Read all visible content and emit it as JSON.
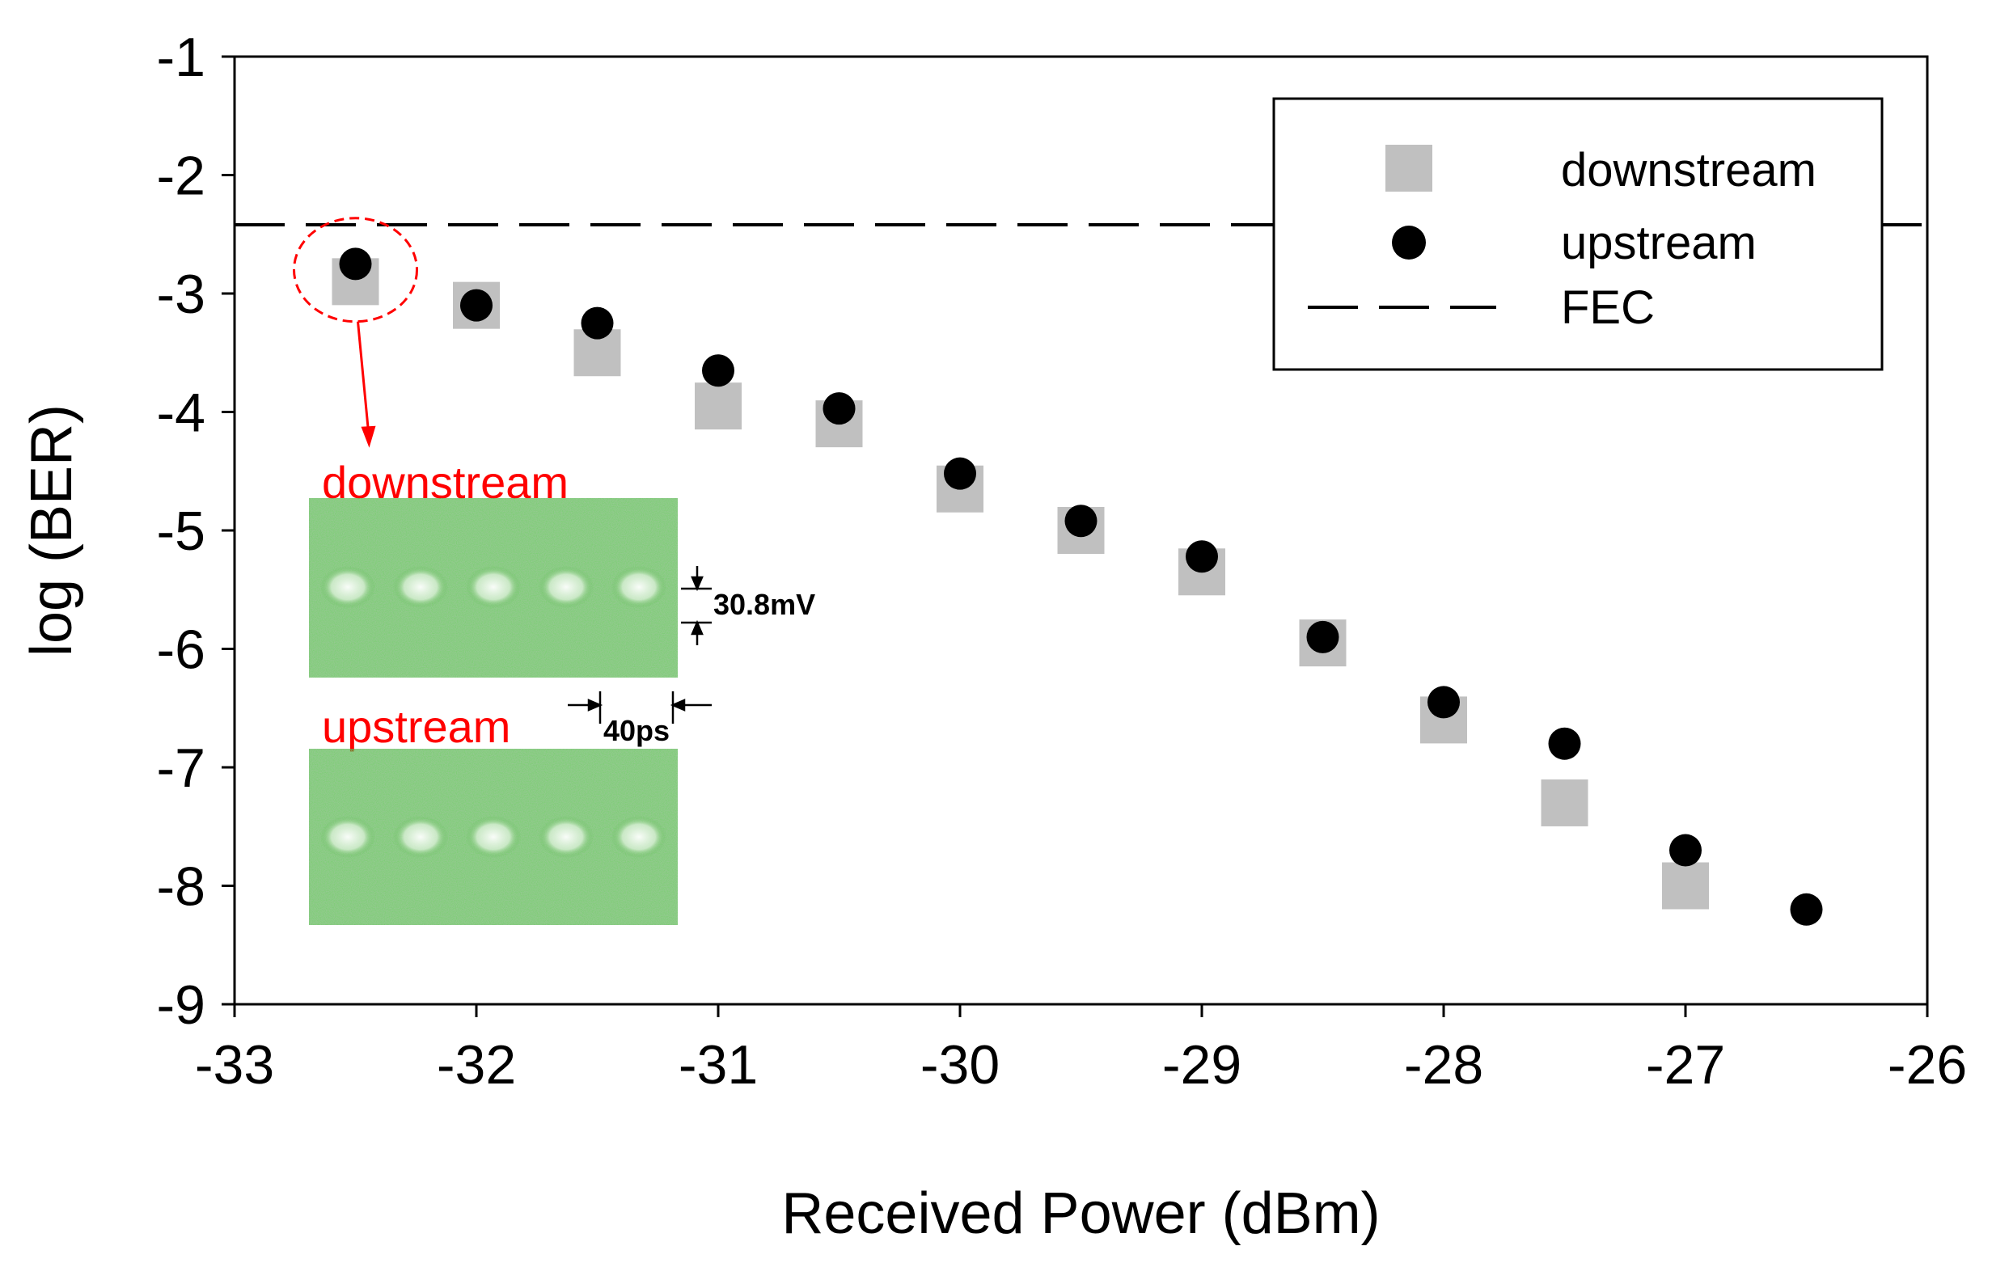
{
  "chart_data": {
    "type": "scatter",
    "title": "",
    "xlabel": "Received Power (dBm)",
    "ylabel": "log (BER)",
    "xlim": [
      -33,
      -26
    ],
    "ylim": [
      -9,
      -1
    ],
    "xticks": [
      -33,
      -32,
      -31,
      -30,
      -29,
      -28,
      -27,
      -26
    ],
    "yticks": [
      -1,
      -2,
      -3,
      -4,
      -5,
      -6,
      -7,
      -8,
      -9
    ],
    "grid": false,
    "legend_position": "top-right",
    "series": [
      {
        "name": "downstream",
        "marker": "square",
        "color": "#c0c0c0",
        "points": [
          {
            "x": -32.5,
            "y": -2.9
          },
          {
            "x": -32.0,
            "y": -3.1
          },
          {
            "x": -31.5,
            "y": -3.5
          },
          {
            "x": -31.0,
            "y": -3.95
          },
          {
            "x": -30.5,
            "y": -4.1
          },
          {
            "x": -30.0,
            "y": -4.65
          },
          {
            "x": -29.5,
            "y": -5.0
          },
          {
            "x": -29.0,
            "y": -5.35
          },
          {
            "x": -28.5,
            "y": -5.95
          },
          {
            "x": -28.0,
            "y": -6.6
          },
          {
            "x": -27.5,
            "y": -7.3
          },
          {
            "x": -27.0,
            "y": -8.0
          }
        ]
      },
      {
        "name": "upstream",
        "marker": "circle",
        "color": "#000000",
        "points": [
          {
            "x": -32.5,
            "y": -2.75
          },
          {
            "x": -32.0,
            "y": -3.1
          },
          {
            "x": -31.5,
            "y": -3.25
          },
          {
            "x": -31.0,
            "y": -3.65
          },
          {
            "x": -30.5,
            "y": -3.97
          },
          {
            "x": -30.0,
            "y": -4.52
          },
          {
            "x": -29.5,
            "y": -4.92
          },
          {
            "x": -29.0,
            "y": -5.22
          },
          {
            "x": -28.5,
            "y": -5.9
          },
          {
            "x": -28.0,
            "y": -6.45
          },
          {
            "x": -27.5,
            "y": -6.8
          },
          {
            "x": -27.0,
            "y": -7.7
          },
          {
            "x": -26.5,
            "y": -8.2
          }
        ]
      },
      {
        "name": "FEC",
        "type": "hline",
        "style": "dashed",
        "color": "#000000",
        "y": -2.42
      }
    ],
    "annotations": {
      "highlight_point": {
        "x": -32.5,
        "y": -2.8
      },
      "inset_downstream_label": "downstream",
      "inset_upstream_label": "upstream",
      "amplitude_label": "30.8mV",
      "time_label": "40ps"
    }
  },
  "colors": {
    "inset_text": "#ff0000",
    "eye": "#33a02c",
    "eye_light": "#8fd08a"
  }
}
